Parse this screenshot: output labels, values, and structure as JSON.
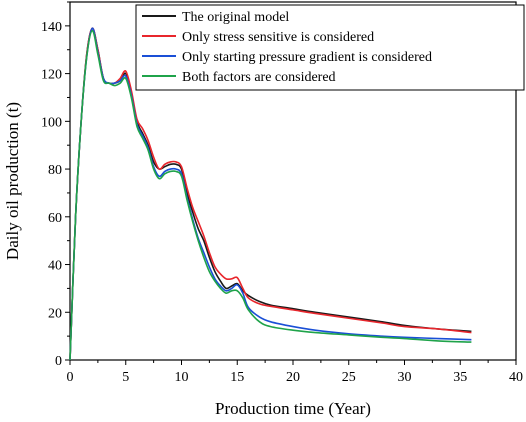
{
  "chart_data": {
    "type": "line",
    "title": "",
    "xlabel": "Production time (Year)",
    "ylabel": "Daily oil production (t)",
    "xlim": [
      0,
      40
    ],
    "ylim": [
      0,
      150
    ],
    "x_ticks": [
      0,
      5,
      10,
      15,
      20,
      25,
      30,
      35,
      40
    ],
    "y_ticks": [
      0,
      20,
      40,
      60,
      80,
      100,
      120,
      140
    ],
    "grid": false,
    "legend_position": "top-right",
    "series": [
      {
        "name": "The original model",
        "color": "#1a1a1a",
        "points": [
          [
            0,
            0
          ],
          [
            0.5,
            60
          ],
          [
            1,
            100
          ],
          [
            1.5,
            128
          ],
          [
            2,
            139
          ],
          [
            2.5,
            130
          ],
          [
            3,
            118
          ],
          [
            3.5,
            116
          ],
          [
            4,
            116
          ],
          [
            4.5,
            117
          ],
          [
            5,
            120
          ],
          [
            5.5,
            112
          ],
          [
            6,
            100
          ],
          [
            6.5,
            95
          ],
          [
            7,
            90
          ],
          [
            7.5,
            83
          ],
          [
            8,
            80
          ],
          [
            8.5,
            81
          ],
          [
            9,
            82
          ],
          [
            9.5,
            82
          ],
          [
            10,
            80
          ],
          [
            10.5,
            70
          ],
          [
            11,
            62
          ],
          [
            11.5,
            55
          ],
          [
            12,
            50
          ],
          [
            12.5,
            43
          ],
          [
            13,
            37
          ],
          [
            13.5,
            33
          ],
          [
            14,
            30
          ],
          [
            14.5,
            31
          ],
          [
            15,
            32
          ],
          [
            15.5,
            29
          ],
          [
            16,
            27
          ],
          [
            17,
            24.5
          ],
          [
            18,
            23
          ],
          [
            20,
            21.5
          ],
          [
            22,
            20
          ],
          [
            25,
            18
          ],
          [
            28,
            16
          ],
          [
            30,
            14.5
          ],
          [
            33,
            13
          ],
          [
            36,
            12
          ]
        ]
      },
      {
        "name": "Only stress sensitive is considered",
        "color": "#e8262c",
        "points": [
          [
            0,
            0
          ],
          [
            0.5,
            60
          ],
          [
            1,
            100
          ],
          [
            1.5,
            128
          ],
          [
            2,
            139
          ],
          [
            2.5,
            130
          ],
          [
            3,
            118
          ],
          [
            3.5,
            116
          ],
          [
            4,
            116
          ],
          [
            4.5,
            118
          ],
          [
            5,
            121
          ],
          [
            5.5,
            113
          ],
          [
            6,
            101
          ],
          [
            6.5,
            97
          ],
          [
            7,
            92
          ],
          [
            7.5,
            85
          ],
          [
            8,
            80
          ],
          [
            8.5,
            82
          ],
          [
            9,
            83
          ],
          [
            9.5,
            83
          ],
          [
            10,
            81
          ],
          [
            10.5,
            72
          ],
          [
            11,
            64
          ],
          [
            11.5,
            58
          ],
          [
            12,
            52
          ],
          [
            12.5,
            45
          ],
          [
            13,
            39
          ],
          [
            13.5,
            36
          ],
          [
            14,
            34
          ],
          [
            14.5,
            34
          ],
          [
            15,
            34.5
          ],
          [
            15.5,
            30
          ],
          [
            16,
            26
          ],
          [
            17,
            23.5
          ],
          [
            18,
            22.5
          ],
          [
            20,
            21
          ],
          [
            22,
            19.5
          ],
          [
            25,
            17.5
          ],
          [
            28,
            15.5
          ],
          [
            30,
            14
          ],
          [
            33,
            13
          ],
          [
            36,
            11.5
          ]
        ]
      },
      {
        "name": "Only starting pressure gradient is considered",
        "color": "#1a4fd6",
        "points": [
          [
            0,
            0
          ],
          [
            0.5,
            60
          ],
          [
            1,
            100
          ],
          [
            1.5,
            127
          ],
          [
            2,
            139
          ],
          [
            2.5,
            129
          ],
          [
            3,
            118
          ],
          [
            3.5,
            116
          ],
          [
            4,
            116
          ],
          [
            4.5,
            117
          ],
          [
            5,
            119
          ],
          [
            5.5,
            111
          ],
          [
            6,
            99
          ],
          [
            6.5,
            94
          ],
          [
            7,
            89
          ],
          [
            7.5,
            81
          ],
          [
            8,
            77
          ],
          [
            8.5,
            79
          ],
          [
            9,
            80
          ],
          [
            9.5,
            80
          ],
          [
            10,
            78
          ],
          [
            10.5,
            68
          ],
          [
            11,
            59
          ],
          [
            11.5,
            51
          ],
          [
            12,
            45
          ],
          [
            12.5,
            39
          ],
          [
            13,
            34
          ],
          [
            13.5,
            31
          ],
          [
            14,
            29
          ],
          [
            14.5,
            30
          ],
          [
            15,
            31.5
          ],
          [
            15.5,
            28
          ],
          [
            16,
            22
          ],
          [
            17,
            18
          ],
          [
            18,
            16
          ],
          [
            20,
            14
          ],
          [
            22,
            12.5
          ],
          [
            25,
            11
          ],
          [
            28,
            10
          ],
          [
            30,
            9.5
          ],
          [
            33,
            9
          ],
          [
            36,
            8.5
          ]
        ]
      },
      {
        "name": "Both factors are considered",
        "color": "#1fa34a",
        "points": [
          [
            0,
            0
          ],
          [
            0.5,
            60
          ],
          [
            1,
            100
          ],
          [
            1.5,
            127
          ],
          [
            2,
            138
          ],
          [
            2.5,
            128
          ],
          [
            3,
            117
          ],
          [
            3.5,
            116
          ],
          [
            4,
            115
          ],
          [
            4.5,
            116
          ],
          [
            5,
            118
          ],
          [
            5.5,
            110
          ],
          [
            6,
            98
          ],
          [
            6.5,
            93
          ],
          [
            7,
            88
          ],
          [
            7.5,
            80
          ],
          [
            8,
            76
          ],
          [
            8.5,
            78
          ],
          [
            9,
            79
          ],
          [
            9.5,
            79
          ],
          [
            10,
            77
          ],
          [
            10.5,
            67
          ],
          [
            11,
            58
          ],
          [
            11.5,
            50
          ],
          [
            12,
            43
          ],
          [
            12.5,
            37
          ],
          [
            13,
            33
          ],
          [
            13.5,
            30
          ],
          [
            14,
            28
          ],
          [
            14.5,
            29
          ],
          [
            15,
            29
          ],
          [
            15.5,
            26
          ],
          [
            16,
            21
          ],
          [
            17,
            16
          ],
          [
            18,
            14
          ],
          [
            20,
            12.5
          ],
          [
            22,
            11.5
          ],
          [
            25,
            10.5
          ],
          [
            28,
            9.5
          ],
          [
            30,
            9
          ],
          [
            33,
            8
          ],
          [
            36,
            7.5
          ]
        ]
      }
    ]
  }
}
